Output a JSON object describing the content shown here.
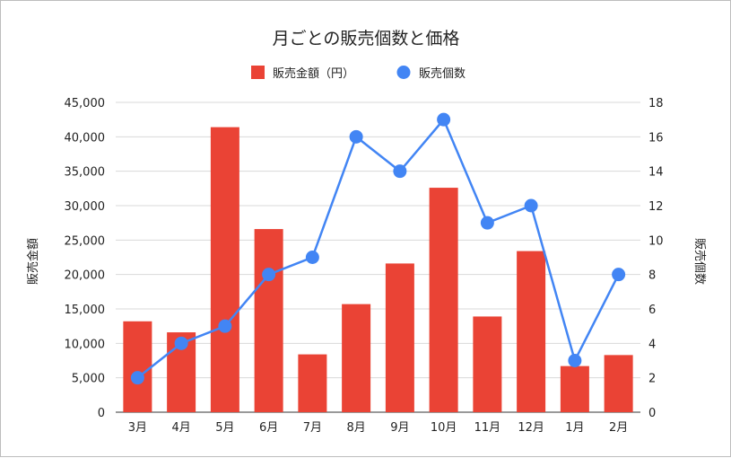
{
  "chart_data": {
    "type": "bar",
    "title": "月ごとの販売個数と価格",
    "categories": [
      "3月",
      "4月",
      "5月",
      "6月",
      "7月",
      "8月",
      "9月",
      "10月",
      "11月",
      "12月",
      "1月",
      "2月"
    ],
    "series": [
      {
        "name": "販売金額（円）",
        "type": "bar",
        "axis": "left",
        "color": "#EA4335",
        "values": [
          13200,
          11600,
          41400,
          26600,
          8400,
          15700,
          21600,
          32600,
          13900,
          23400,
          6700,
          8300
        ]
      },
      {
        "name": "販売個数",
        "type": "line",
        "axis": "right",
        "color": "#4285F4",
        "values": [
          2,
          4,
          5,
          8,
          9,
          16,
          14,
          17,
          11,
          12,
          3,
          8
        ]
      }
    ],
    "ylabel_left": "販売金額",
    "ylabel_right": "販売個数",
    "ylim_left": [
      0,
      45000
    ],
    "ylim_right": [
      0,
      18
    ],
    "yticks_left": [
      "0",
      "5,000",
      "10,000",
      "15,000",
      "20,000",
      "25,000",
      "30,000",
      "35,000",
      "40,000",
      "45,000"
    ],
    "yticks_right": [
      "0",
      "2",
      "4",
      "6",
      "8",
      "10",
      "12",
      "14",
      "16",
      "18"
    ],
    "grid": true,
    "legend_position": "top"
  }
}
